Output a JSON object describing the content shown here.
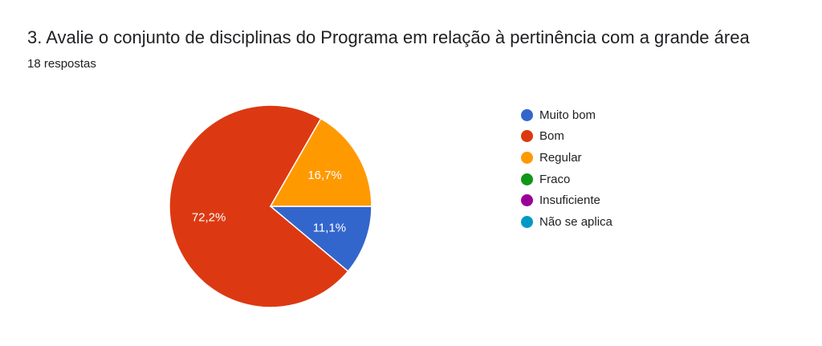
{
  "header": {
    "title": "3. Avalie o conjunto de disciplinas do Programa em relação à pertinência com a grande área",
    "subtitle": "18 respostas"
  },
  "chart_data": {
    "type": "pie",
    "title": "3. Avalie o conjunto de disciplinas do Programa em relação à pertinência com a grande área",
    "subtitle": "18 respostas",
    "legend_position": "right",
    "slices": [
      {
        "label": "Muito bom",
        "value": 11.1,
        "display": "11,1%",
        "color": "#3366cc"
      },
      {
        "label": "Bom",
        "value": 72.2,
        "display": "72,2%",
        "color": "#dc3912"
      },
      {
        "label": "Regular",
        "value": 16.7,
        "display": "16,7%",
        "color": "#ff9900"
      },
      {
        "label": "Fraco",
        "value": 0,
        "display": "",
        "color": "#109618"
      },
      {
        "label": "Insuficiente",
        "value": 0,
        "display": "",
        "color": "#990099"
      },
      {
        "label": "Não se aplica",
        "value": 0,
        "display": "",
        "color": "#0099c6"
      }
    ]
  }
}
